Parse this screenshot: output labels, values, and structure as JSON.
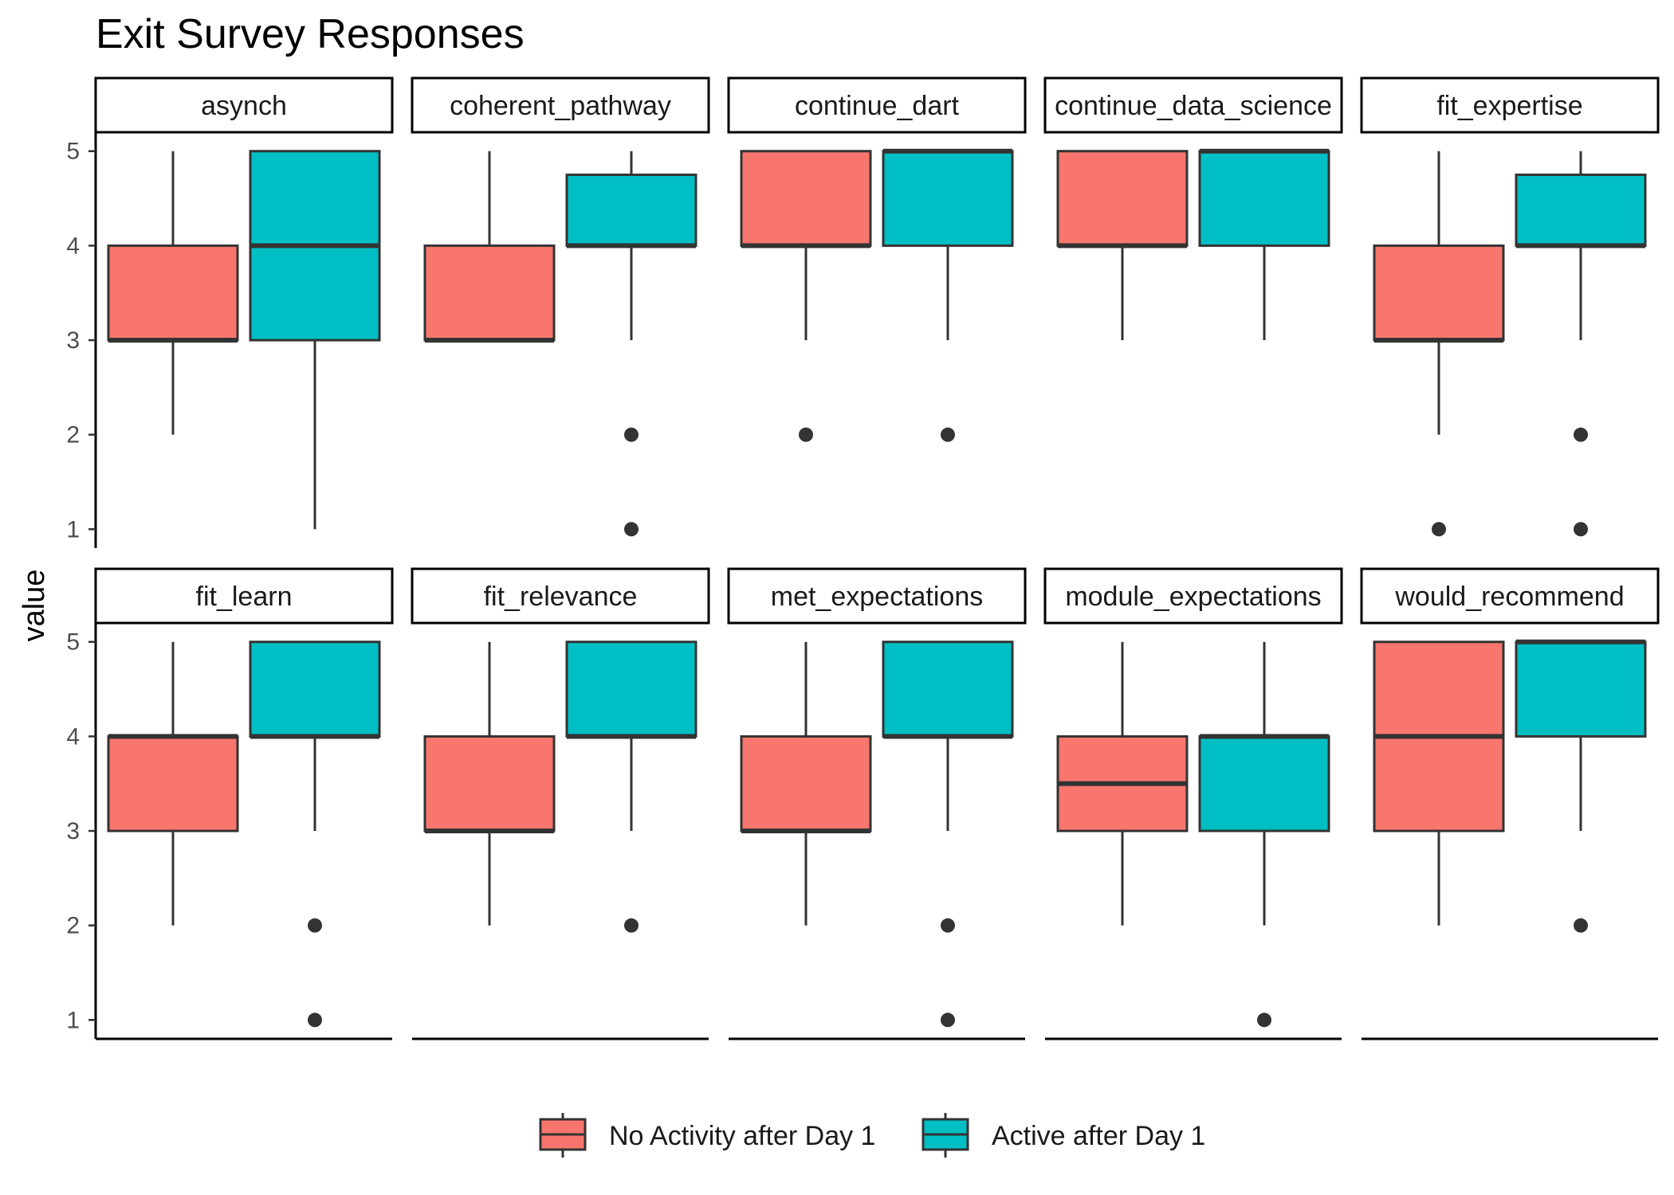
{
  "chart_data": {
    "type": "boxplot",
    "title": "Exit Survey Responses",
    "xlabel": "",
    "ylabel": "value",
    "ylim": [
      1,
      5
    ],
    "yticks": [
      1,
      2,
      3,
      4,
      5
    ],
    "facet_rows": 2,
    "facet_cols": 5,
    "grid": false,
    "legend_position": "bottom",
    "series": [
      {
        "name": "No Activity after Day 1",
        "color": "#F8766D"
      },
      {
        "name": "Active after Day 1",
        "color": "#00BFC4"
      }
    ],
    "facets": [
      {
        "label": "asynch",
        "boxes": [
          {
            "min": 2,
            "q1": 3,
            "median": 3,
            "q3": 4,
            "max": 5,
            "outliers": []
          },
          {
            "min": 1,
            "q1": 3,
            "median": 4,
            "q3": 5,
            "max": 5,
            "outliers": []
          }
        ]
      },
      {
        "label": "coherent_pathway",
        "boxes": [
          {
            "min": 3,
            "q1": 3,
            "median": 3,
            "q3": 4,
            "max": 5,
            "outliers": []
          },
          {
            "min": 3,
            "q1": 4,
            "median": 4,
            "q3": 4.75,
            "max": 5,
            "outliers": [
              2,
              1
            ]
          }
        ]
      },
      {
        "label": "continue_dart",
        "boxes": [
          {
            "min": 3,
            "q1": 4,
            "median": 4,
            "q3": 5,
            "max": 5,
            "outliers": [
              2
            ]
          },
          {
            "min": 3,
            "q1": 4,
            "median": 5,
            "q3": 5,
            "max": 5,
            "outliers": [
              2
            ]
          }
        ]
      },
      {
        "label": "continue_data_science",
        "boxes": [
          {
            "min": 3,
            "q1": 4,
            "median": 4,
            "q3": 5,
            "max": 5,
            "outliers": []
          },
          {
            "min": 3,
            "q1": 4,
            "median": 5,
            "q3": 5,
            "max": 5,
            "outliers": []
          }
        ]
      },
      {
        "label": "fit_expertise",
        "boxes": [
          {
            "min": 2,
            "q1": 3,
            "median": 3,
            "q3": 4,
            "max": 5,
            "outliers": [
              1
            ]
          },
          {
            "min": 3,
            "q1": 4,
            "median": 4,
            "q3": 4.75,
            "max": 5,
            "outliers": [
              2,
              1
            ]
          }
        ]
      },
      {
        "label": "fit_learn",
        "boxes": [
          {
            "min": 2,
            "q1": 3,
            "median": 4,
            "q3": 4,
            "max": 5,
            "outliers": []
          },
          {
            "min": 3,
            "q1": 4,
            "median": 4,
            "q3": 5,
            "max": 5,
            "outliers": [
              2,
              1
            ]
          }
        ]
      },
      {
        "label": "fit_relevance",
        "boxes": [
          {
            "min": 2,
            "q1": 3,
            "median": 3,
            "q3": 4,
            "max": 5,
            "outliers": []
          },
          {
            "min": 3,
            "q1": 4,
            "median": 4,
            "q3": 5,
            "max": 5,
            "outliers": [
              2
            ]
          }
        ]
      },
      {
        "label": "met_expectations",
        "boxes": [
          {
            "min": 2,
            "q1": 3,
            "median": 3,
            "q3": 4,
            "max": 5,
            "outliers": []
          },
          {
            "min": 3,
            "q1": 4,
            "median": 4,
            "q3": 5,
            "max": 5,
            "outliers": [
              2,
              1
            ]
          }
        ]
      },
      {
        "label": "module_expectations",
        "boxes": [
          {
            "min": 2,
            "q1": 3,
            "median": 3.5,
            "q3": 4,
            "max": 5,
            "outliers": []
          },
          {
            "min": 2,
            "q1": 3,
            "median": 4,
            "q3": 4,
            "max": 5,
            "outliers": [
              1
            ]
          }
        ]
      },
      {
        "label": "would_recommend",
        "boxes": [
          {
            "min": 2,
            "q1": 3,
            "median": 4,
            "q3": 5,
            "max": 5,
            "outliers": []
          },
          {
            "min": 3,
            "q1": 4,
            "median": 5,
            "q3": 5,
            "max": 5,
            "outliers": [
              2
            ]
          }
        ]
      }
    ]
  }
}
